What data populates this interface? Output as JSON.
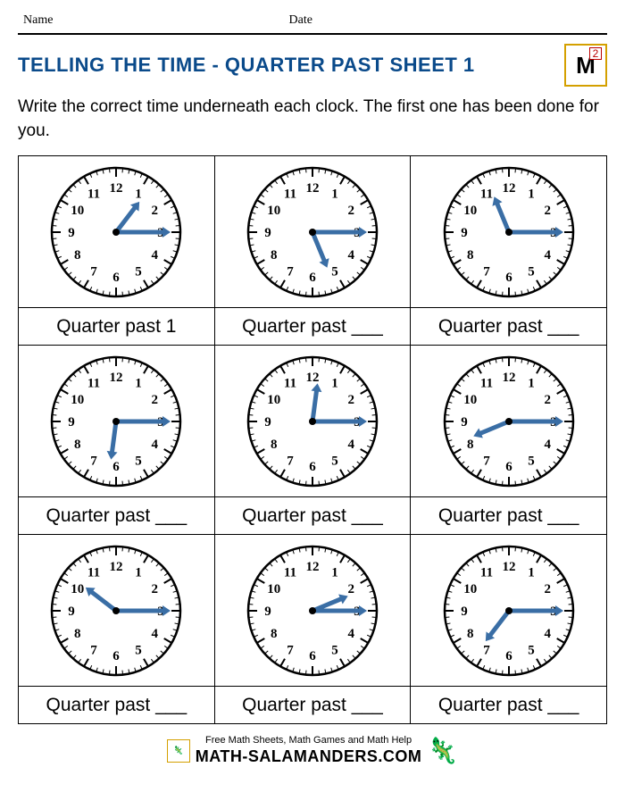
{
  "header": {
    "name_label": "Name",
    "date_label": "Date"
  },
  "title": "TELLING THE TIME - QUARTER PAST SHEET 1",
  "grade_badge": {
    "number": "2",
    "glyph": "M"
  },
  "instructions": "Write the correct time underneath each clock. The first one has been done for you.",
  "styling": {
    "title_color": "#0a4a8a",
    "hand_color": "#3a6ea5",
    "clock_stroke": "#000000",
    "clock_face_bg": "#ffffff",
    "answer_fontsize": 21,
    "clock_radius": 72,
    "hour_hand_len": 34,
    "minute_hand_len": 52,
    "hand_width": 5
  },
  "clocks": [
    {
      "hour_hand_at": 1.25,
      "minute_hand_at": 3,
      "answer_prefix": "Quarter past",
      "answer_value": "1"
    },
    {
      "hour_hand_at": 5.25,
      "minute_hand_at": 3,
      "answer_prefix": "Quarter past",
      "answer_value": "___"
    },
    {
      "hour_hand_at": 11.25,
      "minute_hand_at": 3,
      "answer_prefix": "Quarter past",
      "answer_value": "___"
    },
    {
      "hour_hand_at": 6.25,
      "minute_hand_at": 3,
      "answer_prefix": "Quarter past",
      "answer_value": "___"
    },
    {
      "hour_hand_at": 12.25,
      "minute_hand_at": 3,
      "answer_prefix": "Quarter past",
      "answer_value": "___"
    },
    {
      "hour_hand_at": 8.25,
      "minute_hand_at": 3,
      "answer_prefix": "Quarter past",
      "answer_value": "___"
    },
    {
      "hour_hand_at": 10.25,
      "minute_hand_at": 3,
      "answer_prefix": "Quarter past",
      "answer_value": "___"
    },
    {
      "hour_hand_at": 2.25,
      "minute_hand_at": 3,
      "answer_prefix": "Quarter past",
      "answer_value": "___"
    },
    {
      "hour_hand_at": 7.25,
      "minute_hand_at": 3,
      "answer_prefix": "Quarter past",
      "answer_value": "___"
    }
  ],
  "footer": {
    "tagline": "Free Math Sheets, Math Games and Math Help",
    "url": "MATH-SALAMANDERS.COM"
  }
}
